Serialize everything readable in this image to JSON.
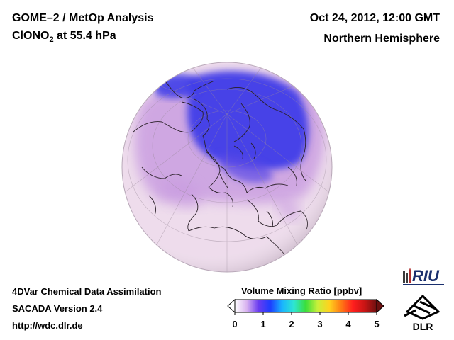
{
  "header": {
    "left_line1": "GOME–2 / MetOp Analysis",
    "left_line2_pre": "ClONO",
    "left_line2_sub": "2",
    "left_line2_post": " at 55.4 hPa",
    "right_line1": "Oct 24, 2012, 12:00 GMT",
    "right_line2": "Northern Hemisphere"
  },
  "footer": {
    "line1": "4DVar Chemical Data Assimilation",
    "line2": "SACADA Version 2.4",
    "line3": "http://wdc.dlr.de"
  },
  "colorbar": {
    "title": "Volume Mixing Ratio [ppbv]",
    "ticks": [
      "0",
      "1",
      "2",
      "3",
      "4",
      "5"
    ],
    "colors": [
      "#ffffff",
      "#d9b3f0",
      "#6a3cf0",
      "#1d3cff",
      "#19b4ff",
      "#2ee6d2",
      "#3ade3a",
      "#c8f03a",
      "#ffd21e",
      "#ff7a14",
      "#ff1e1e",
      "#c81414",
      "#6b1010"
    ]
  },
  "logos": {
    "riu": "RIU",
    "dlr": "DLR"
  },
  "map": {
    "ocean_color": "#eedcec",
    "land_color": "#f3e2ea",
    "low_color": "#3f3ce8",
    "mid_color": "#c79ae0"
  }
}
